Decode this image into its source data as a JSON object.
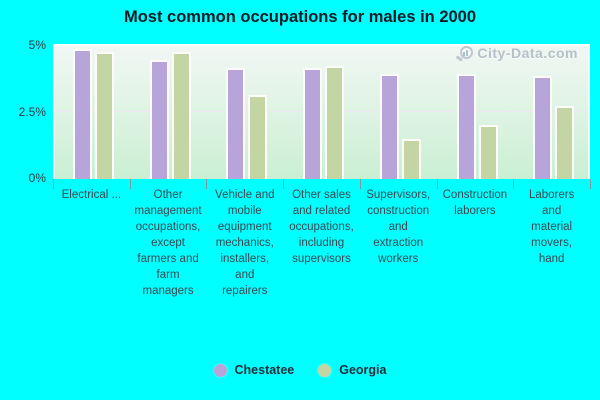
{
  "window": {
    "background_color": "#00ffff"
  },
  "title": "Most common occupations for males in 2000",
  "watermark": {
    "text": "City-Data.com",
    "icon": "magnifier-chart-logo",
    "color": "#a7b4bd"
  },
  "y_axis": {
    "labels": [
      "5%",
      "2.5%",
      "0%"
    ],
    "values": [
      5,
      2.5,
      0
    ]
  },
  "legend": {
    "position": "bottom-center",
    "items": [
      {
        "label": "Chestatee",
        "color": "#b7a4d9"
      },
      {
        "label": "Georgia",
        "color": "#c3d5a3"
      }
    ]
  },
  "chart_data": {
    "type": "bar",
    "title": "Most common occupations for males in 2000",
    "categories": [
      "Electrical ...",
      "Other management occupations, except farmers and farm managers",
      "Vehicle and mobile equipment mechanics, installers, and repairers",
      "Other sales and related occupations, including supervisors",
      "Supervisors, construction and extraction workers",
      "Construction laborers",
      "Laborers and material movers, hand"
    ],
    "categories_wrapped": [
      "Electrical ...",
      "Other\nmanagement\noccupations,\nexcept\nfarmers and\nfarm\nmanagers",
      "Vehicle and\nmobile\nequipment\nmechanics,\ninstallers,\nand\nrepairers",
      "Other sales\nand related\noccupations,\nincluding\nsupervisors",
      "Supervisors,\nconstruction\nand\nextraction\nworkers",
      "Construction\nlaborers",
      "Laborers\nand\nmaterial\nmovers,\nhand"
    ],
    "series": [
      {
        "name": "Chestatee",
        "color": "#b7a4d9",
        "values": [
          4.8,
          4.4,
          4.1,
          4.1,
          3.9,
          3.9,
          3.8
        ]
      },
      {
        "name": "Georgia",
        "color": "#c3d5a3",
        "values": [
          4.7,
          4.7,
          3.1,
          4.2,
          1.5,
          2.0,
          2.7
        ]
      }
    ],
    "ylim": [
      0,
      5
    ],
    "yticks": [
      0,
      2.5,
      5
    ],
    "ytick_labels": [
      "0%",
      "2.5%",
      "5%"
    ],
    "grid": "single horizontal gridline at 2.5%",
    "legend_position": "bottom",
    "plot_background": "vertical gradient #f1f7f4 to #c9efd3",
    "bar_border_color": "#ffffff"
  }
}
